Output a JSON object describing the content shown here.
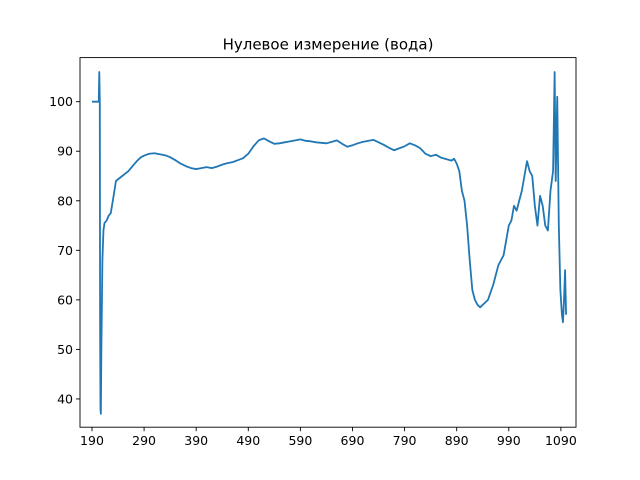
{
  "chart_data": {
    "type": "line",
    "title": "Нулевое измерение (вода)",
    "xlabel": "",
    "ylabel": "",
    "xlim": [
      167,
      1119
    ],
    "ylim": [
      34.3,
      108.9
    ],
    "xticks": [
      190,
      290,
      390,
      490,
      590,
      690,
      790,
      890,
      990,
      1090
    ],
    "yticks": [
      40,
      50,
      60,
      70,
      80,
      90,
      100
    ],
    "grid": false,
    "legend": "none",
    "colors": {
      "line": "#1f77b4",
      "axes": "#000000",
      "background": "#ffffff"
    },
    "series": [
      {
        "x": [
          190,
          203,
          204,
          205,
          205.6,
          206.3,
          207,
          208,
          210,
          212,
          214,
          218,
          222,
          226,
          230,
          236,
          242,
          248,
          254,
          260,
          268,
          276,
          284,
          292,
          300,
          310,
          320,
          330,
          340,
          350,
          360,
          370,
          380,
          390,
          400,
          410,
          420,
          430,
          440,
          450,
          460,
          470,
          480,
          490,
          500,
          510,
          520,
          530,
          540,
          550,
          560,
          570,
          580,
          590,
          600,
          610,
          620,
          630,
          640,
          650,
          660,
          670,
          680,
          690,
          700,
          710,
          720,
          730,
          740,
          750,
          760,
          770,
          780,
          790,
          800,
          810,
          820,
          830,
          840,
          850,
          860,
          870,
          880,
          885,
          890,
          895,
          900,
          905,
          910,
          915,
          920,
          925,
          930,
          935,
          940,
          945,
          950,
          955,
          960,
          965,
          970,
          975,
          980,
          985,
          990,
          995,
          1000,
          1005,
          1010,
          1015,
          1020,
          1025,
          1030,
          1035,
          1040,
          1045,
          1050,
          1055,
          1060,
          1065,
          1070,
          1075,
          1078,
          1080,
          1083,
          1086,
          1089,
          1092,
          1094,
          1096,
          1098,
          1100
        ],
        "y": [
          100,
          100,
          106,
          100,
          55,
          38,
          37,
          50,
          68,
          74,
          75.5,
          76,
          77,
          77.5,
          80,
          84,
          84.5,
          85,
          85.5,
          86,
          87,
          88,
          88.8,
          89.2,
          89.5,
          89.6,
          89.4,
          89.2,
          88.8,
          88.2,
          87.5,
          87,
          86.6,
          86.4,
          86.6,
          86.8,
          86.6,
          86.9,
          87.3,
          87.6,
          87.8,
          88.2,
          88.6,
          89.5,
          91,
          92.2,
          92.6,
          92,
          91.5,
          91.6,
          91.8,
          92,
          92.2,
          92.4,
          92.1,
          92,
          91.8,
          91.7,
          91.6,
          91.9,
          92.2,
          91.5,
          90.9,
          91.2,
          91.6,
          91.9,
          92.1,
          92.3,
          91.8,
          91.3,
          90.7,
          90.2,
          90.6,
          91,
          91.6,
          91.2,
          90.6,
          89.5,
          89,
          89.3,
          88.7,
          88.4,
          88.1,
          88.5,
          87.5,
          86,
          82,
          80,
          75,
          68,
          62,
          60,
          59,
          58.5,
          59,
          59.5,
          60,
          61.5,
          63,
          65,
          67,
          68,
          69,
          72,
          75,
          76,
          79,
          78,
          80,
          82,
          85,
          88,
          86,
          85,
          79,
          75,
          81,
          79,
          75,
          74,
          82,
          86,
          106,
          84,
          101,
          75,
          62,
          57,
          55.5,
          60,
          66,
          57
        ]
      }
    ]
  }
}
